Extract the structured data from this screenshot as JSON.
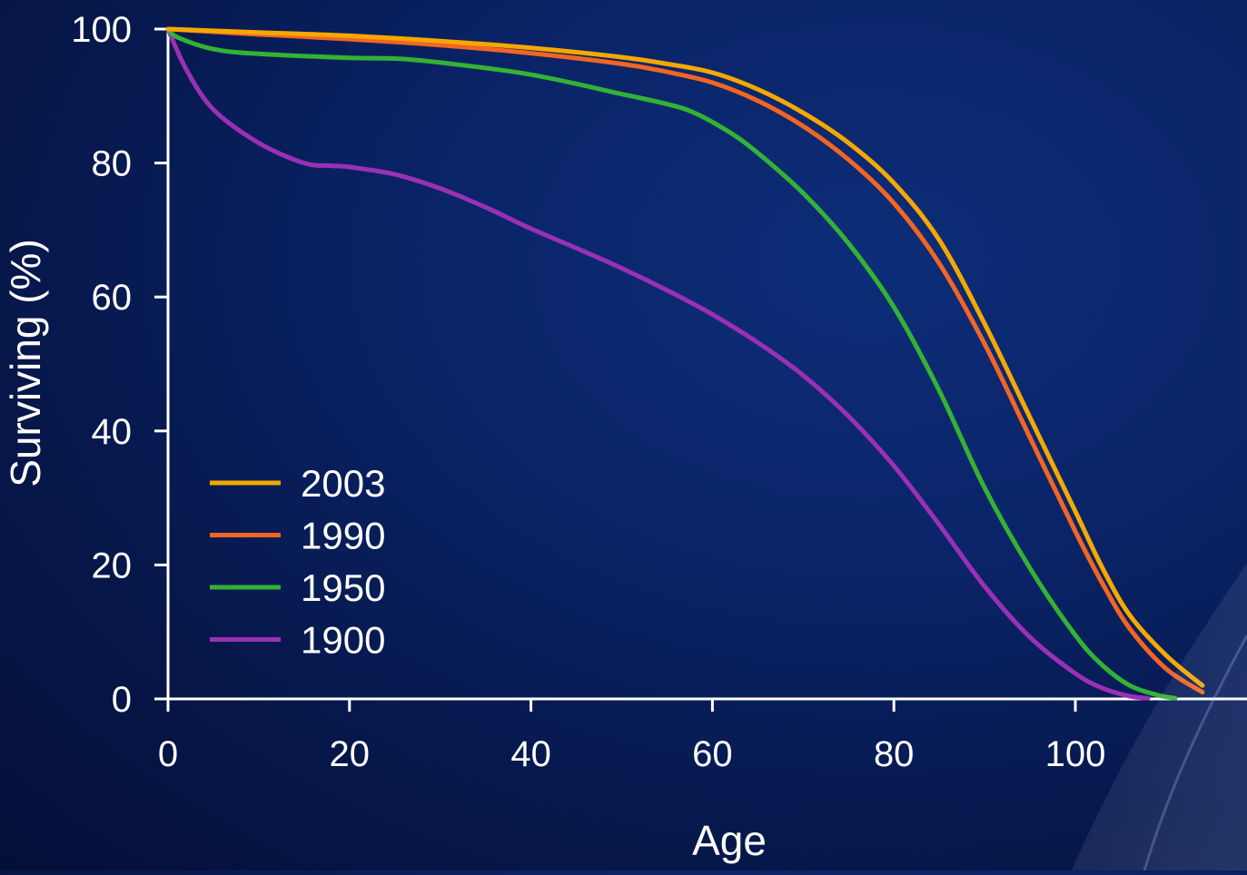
{
  "chart_data": {
    "type": "line",
    "title": "",
    "xlabel": "Age",
    "ylabel": "Surviving (%)",
    "xlim": [
      0,
      119
    ],
    "ylim": [
      0,
      100
    ],
    "xticks": [
      0,
      20,
      40,
      60,
      80,
      100
    ],
    "yticks": [
      0,
      20,
      40,
      60,
      80,
      100
    ],
    "grid": false,
    "legend_position": "lower-left",
    "series": [
      {
        "name": "2003",
        "color": "#f5a800",
        "x": [
          0,
          10,
          20,
          30,
          40,
          50,
          55,
          60,
          65,
          70,
          75,
          80,
          85,
          90,
          95,
          100,
          103,
          106,
          110,
          114
        ],
        "y": [
          100,
          99.5,
          99,
          98.2,
          97.2,
          95.8,
          94.8,
          93.5,
          91,
          87.5,
          83,
          77,
          68.5,
          56,
          42,
          28,
          19.5,
          12.5,
          6.5,
          2
        ]
      },
      {
        "name": "1990",
        "color": "#f26522",
        "x": [
          0,
          10,
          20,
          30,
          40,
          50,
          55,
          60,
          65,
          70,
          75,
          80,
          85,
          90,
          95,
          100,
          103,
          106,
          110,
          114
        ],
        "y": [
          100,
          99.2,
          98.5,
          97.6,
          96.4,
          94.8,
          93.6,
          92,
          89.3,
          85.5,
          80.5,
          74,
          65,
          53,
          39,
          25,
          17.2,
          10.5,
          4.5,
          1
        ]
      },
      {
        "name": "1950",
        "color": "#33b233",
        "x": [
          0,
          1,
          5,
          10,
          20,
          25,
          30,
          40,
          50,
          55,
          58,
          62,
          65,
          70,
          75,
          80,
          85,
          90,
          95,
          100,
          103,
          106,
          109,
          111
        ],
        "y": [
          100,
          98.8,
          97,
          96.3,
          95.7,
          95.6,
          95,
          93.2,
          90.3,
          88.8,
          87.5,
          84.5,
          81.5,
          75.5,
          68,
          58.5,
          46,
          31.5,
          19.5,
          9.5,
          5,
          2,
          0.6,
          0.1
        ]
      },
      {
        "name": "1900",
        "color": "#9b30b5",
        "x": [
          0,
          2,
          5,
          10,
          15,
          18,
          20,
          25,
          30,
          35,
          40,
          45,
          50,
          55,
          60,
          65,
          70,
          75,
          80,
          85,
          90,
          95,
          100,
          103,
          106,
          108
        ],
        "y": [
          100,
          94,
          88,
          83,
          80,
          79.6,
          79.4,
          78.3,
          76.2,
          73.4,
          70.2,
          67.3,
          64.3,
          61,
          57.4,
          53.2,
          48.3,
          42.2,
          34.8,
          26,
          16.8,
          9.2,
          3.8,
          1.6,
          0.4,
          0.1
        ]
      }
    ]
  }
}
